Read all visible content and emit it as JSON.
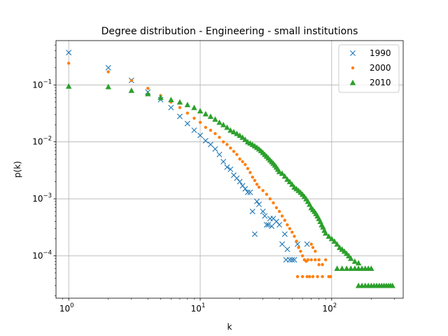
{
  "chart_data": {
    "type": "scatter",
    "title": "Degree distribution - Engineering - small institutions",
    "xlabel": "k",
    "ylabel": "p(k)",
    "xscale": "log",
    "yscale": "log",
    "xlim": [
      0.8,
      350
    ],
    "ylim": [
      1.8e-05,
      0.6
    ],
    "grid": true,
    "legend_position": "top-right",
    "x_ticks": [
      {
        "value": 1,
        "mantissa": "10",
        "exp": "0"
      },
      {
        "value": 10,
        "mantissa": "10",
        "exp": "1"
      },
      {
        "value": 100,
        "mantissa": "10",
        "exp": "2"
      }
    ],
    "y_ticks": [
      {
        "value": 0.0001,
        "mantissa": "10",
        "exp": "−4"
      },
      {
        "value": 0.001,
        "mantissa": "10",
        "exp": "−3"
      },
      {
        "value": 0.01,
        "mantissa": "10",
        "exp": "−2"
      },
      {
        "value": 0.1,
        "mantissa": "10",
        "exp": "−1"
      }
    ],
    "series": [
      {
        "name": "1990",
        "marker": "x",
        "color": "#1f77b4",
        "points": [
          [
            1,
            0.37
          ],
          [
            2,
            0.2
          ],
          [
            3,
            0.12
          ],
          [
            4,
            0.075
          ],
          [
            5,
            0.055
          ],
          [
            6,
            0.04
          ],
          [
            7,
            0.028
          ],
          [
            8,
            0.021
          ],
          [
            9,
            0.016
          ],
          [
            10,
            0.013
          ],
          [
            11,
            0.0105
          ],
          [
            12,
            0.009
          ],
          [
            13,
            0.0075
          ],
          [
            14,
            0.006
          ],
          [
            15,
            0.0045
          ],
          [
            16,
            0.0036
          ],
          [
            17,
            0.0033
          ],
          [
            18,
            0.0026
          ],
          [
            19,
            0.0023
          ],
          [
            20,
            0.002
          ],
          [
            21,
            0.0017
          ],
          [
            22,
            0.0015
          ],
          [
            23,
            0.0013
          ],
          [
            24,
            0.0013
          ],
          [
            25,
            0.0006
          ],
          [
            26,
            0.00024
          ],
          [
            27,
            0.0009
          ],
          [
            28,
            0.0008
          ],
          [
            30,
            0.0006
          ],
          [
            31,
            0.0005
          ],
          [
            32,
            0.00035
          ],
          [
            33,
            0.00035
          ],
          [
            34,
            0.00045
          ],
          [
            35,
            0.00033
          ],
          [
            36,
            0.00045
          ],
          [
            38,
            0.0004
          ],
          [
            40,
            0.00035
          ],
          [
            42,
            0.00016
          ],
          [
            44,
            0.00024
          ],
          [
            45,
            8.5e-05
          ],
          [
            46,
            0.00013
          ],
          [
            48,
            8.5e-05
          ],
          [
            50,
            8.5e-05
          ],
          [
            52,
            8.5e-05
          ],
          [
            55,
            0.00016
          ],
          [
            65,
            0.00016
          ]
        ]
      },
      {
        "name": "2000",
        "marker": "o",
        "color": "#ff7f0e",
        "points": [
          [
            1,
            0.24
          ],
          [
            2,
            0.17
          ],
          [
            3,
            0.12
          ],
          [
            4,
            0.087
          ],
          [
            5,
            0.065
          ],
          [
            6,
            0.05
          ],
          [
            7,
            0.04
          ],
          [
            8,
            0.032
          ],
          [
            9,
            0.026
          ],
          [
            10,
            0.022
          ],
          [
            11,
            0.018
          ],
          [
            12,
            0.016
          ],
          [
            13,
            0.014
          ],
          [
            14,
            0.012
          ],
          [
            15,
            0.01
          ],
          [
            16,
            0.009
          ],
          [
            17,
            0.0078
          ],
          [
            18,
            0.0068
          ],
          [
            19,
            0.006
          ],
          [
            20,
            0.005
          ],
          [
            21,
            0.0045
          ],
          [
            22,
            0.004
          ],
          [
            23,
            0.0034
          ],
          [
            24,
            0.0029
          ],
          [
            25,
            0.0024
          ],
          [
            26,
            0.0021
          ],
          [
            27,
            0.0018
          ],
          [
            28,
            0.0016
          ],
          [
            30,
            0.0014
          ],
          [
            32,
            0.0012
          ],
          [
            34,
            0.001
          ],
          [
            36,
            0.00085
          ],
          [
            38,
            0.0007
          ],
          [
            40,
            0.0006
          ],
          [
            42,
            0.0005
          ],
          [
            44,
            0.00042
          ],
          [
            46,
            0.00035
          ],
          [
            48,
            0.0003
          ],
          [
            50,
            0.00026
          ],
          [
            52,
            0.00022
          ],
          [
            54,
            0.00018
          ],
          [
            56,
            0.00014
          ],
          [
            58,
            0.00012
          ],
          [
            60,
            0.0001
          ],
          [
            62,
            8.5e-05
          ],
          [
            64,
            8e-05
          ],
          [
            66,
            8.5e-05
          ],
          [
            70,
            8.5e-05
          ],
          [
            75,
            8.5e-05
          ],
          [
            80,
            7e-05
          ],
          [
            70,
            0.00016
          ],
          [
            72,
            0.00014
          ],
          [
            75,
            0.00012
          ],
          [
            80,
            8.5e-05
          ],
          [
            85,
            7e-05
          ],
          [
            90,
            8.5e-05
          ],
          [
            55,
            4.3e-05
          ],
          [
            60,
            4.3e-05
          ],
          [
            65,
            4.3e-05
          ],
          [
            68,
            4.3e-05
          ],
          [
            72,
            4.3e-05
          ],
          [
            78,
            4.3e-05
          ],
          [
            85,
            4.3e-05
          ],
          [
            95,
            4.3e-05
          ],
          [
            98,
            4.3e-05
          ]
        ]
      },
      {
        "name": "2010",
        "marker": "^",
        "color": "#2ca02c",
        "points": [
          [
            1,
            0.095
          ],
          [
            2,
            0.093
          ],
          [
            3,
            0.08
          ],
          [
            4,
            0.07
          ],
          [
            5,
            0.06
          ],
          [
            6,
            0.055
          ],
          [
            7,
            0.05
          ],
          [
            8,
            0.045
          ],
          [
            9,
            0.04
          ],
          [
            10,
            0.035
          ],
          [
            11,
            0.031
          ],
          [
            12,
            0.028
          ],
          [
            13,
            0.025
          ],
          [
            14,
            0.022
          ],
          [
            15,
            0.02
          ],
          [
            16,
            0.018
          ],
          [
            17,
            0.016
          ],
          [
            18,
            0.015
          ],
          [
            19,
            0.014
          ],
          [
            20,
            0.013
          ],
          [
            21,
            0.012
          ],
          [
            22,
            0.011
          ],
          [
            23,
            0.01
          ],
          [
            24,
            0.0095
          ],
          [
            25,
            0.009
          ],
          [
            26,
            0.0085
          ],
          [
            27,
            0.008
          ],
          [
            28,
            0.0075
          ],
          [
            29,
            0.007
          ],
          [
            30,
            0.0065
          ],
          [
            31,
            0.006
          ],
          [
            32,
            0.0056
          ],
          [
            33,
            0.0052
          ],
          [
            34,
            0.0048
          ],
          [
            35,
            0.0045
          ],
          [
            36,
            0.0042
          ],
          [
            37,
            0.0039
          ],
          [
            38,
            0.0036
          ],
          [
            39,
            0.0033
          ],
          [
            40,
            0.003
          ],
          [
            42,
            0.0028
          ],
          [
            44,
            0.0025
          ],
          [
            46,
            0.0022
          ],
          [
            48,
            0.002
          ],
          [
            50,
            0.0018
          ],
          [
            52,
            0.0016
          ],
          [
            54,
            0.0015
          ],
          [
            56,
            0.0014
          ],
          [
            58,
            0.0013
          ],
          [
            60,
            0.0012
          ],
          [
            62,
            0.0011
          ],
          [
            64,
            0.001
          ],
          [
            66,
            0.0009
          ],
          [
            68,
            0.0008
          ],
          [
            70,
            0.0007
          ],
          [
            72,
            0.00065
          ],
          [
            74,
            0.0006
          ],
          [
            76,
            0.00055
          ],
          [
            78,
            0.0005
          ],
          [
            80,
            0.00045
          ],
          [
            82,
            0.0004
          ],
          [
            84,
            0.00035
          ],
          [
            86,
            0.00032
          ],
          [
            88,
            0.00028
          ],
          [
            90,
            0.00025
          ],
          [
            95,
            0.00022
          ],
          [
            100,
            0.0002
          ],
          [
            105,
            0.00018
          ],
          [
            110,
            0.00016
          ],
          [
            115,
            0.00014
          ],
          [
            120,
            0.00013
          ],
          [
            125,
            0.00012
          ],
          [
            130,
            0.00011
          ],
          [
            135,
            0.0001
          ],
          [
            140,
            9e-05
          ],
          [
            150,
            8e-05
          ],
          [
            160,
            7.5e-05
          ],
          [
            110,
            6e-05
          ],
          [
            120,
            6e-05
          ],
          [
            130,
            6e-05
          ],
          [
            140,
            6e-05
          ],
          [
            150,
            6e-05
          ],
          [
            160,
            6e-05
          ],
          [
            170,
            6e-05
          ],
          [
            180,
            6e-05
          ],
          [
            190,
            6e-05
          ],
          [
            200,
            6e-05
          ],
          [
            160,
            3e-05
          ],
          [
            170,
            3e-05
          ],
          [
            180,
            3e-05
          ],
          [
            190,
            3e-05
          ],
          [
            200,
            3e-05
          ],
          [
            210,
            3e-05
          ],
          [
            220,
            3e-05
          ],
          [
            230,
            3e-05
          ],
          [
            240,
            3e-05
          ],
          [
            250,
            3e-05
          ],
          [
            260,
            3e-05
          ],
          [
            270,
            3e-05
          ],
          [
            280,
            3e-05
          ],
          [
            290,
            3e-05
          ]
        ]
      }
    ]
  }
}
